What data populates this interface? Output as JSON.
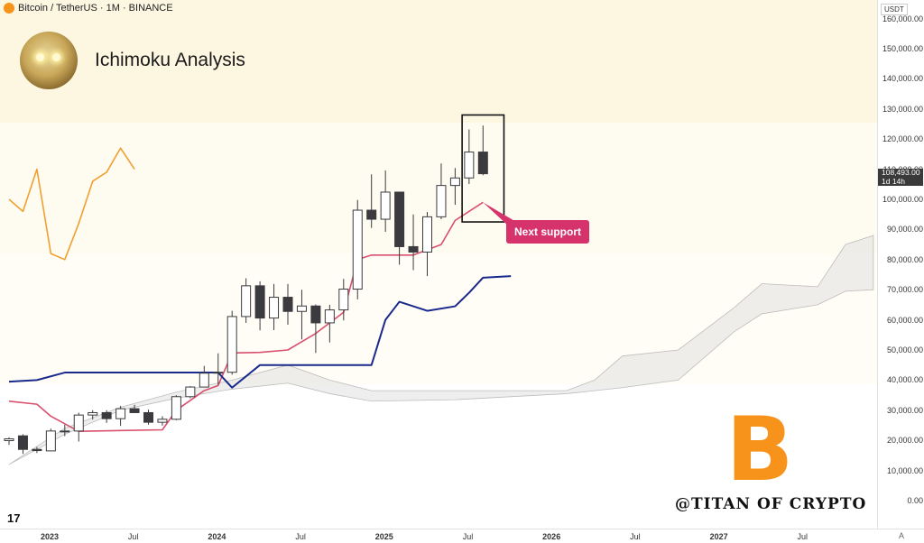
{
  "header": {
    "symbol": "Bitcoin / TetherUS · 1M · BINANCE",
    "currency": "USDT",
    "symbol_icon": "bitcoin-icon"
  },
  "title": "Ichimoku Analysis",
  "avatar_icon": "glowing-eyes-portrait",
  "annotation": "Next support",
  "watermark": "@TITAN OF CRYPTO",
  "bitcoin_logo": "B",
  "tv_logo": "17",
  "bottom_right": "A",
  "price_tag": {
    "price": "108,493.00",
    "countdown": "1d 14h"
  },
  "colors": {
    "conversion_line": "#d94f6e",
    "base_line": "#1a2a8c",
    "lagging_span": "#f0a030",
    "cloud": "#d9d9d9",
    "bull_candle": "#ffffff",
    "bear_candle": "#3b3b3f",
    "annotation": "#d6336c",
    "bitcoin_orange": "#f7931a"
  },
  "chart_data": {
    "type": "candlestick",
    "title": "Bitcoin / TetherUS · 1M · BINANCE",
    "y_axis": {
      "ticks": [
        "160,000.00",
        "150,000.00",
        "140,000.00",
        "130,000.00",
        "120,000.00",
        "110,000.00",
        "100,000.00",
        "90,000.00",
        "80,000.00",
        "70,000.00",
        "60,000.00",
        "50,000.00",
        "40,000.00",
        "30,000.00",
        "20,000.00",
        "10,000.00",
        "0.00"
      ],
      "ylim": [
        0,
        162000
      ]
    },
    "x_axis": {
      "ticks": [
        {
          "label": "2023",
          "t": 0,
          "bold": true
        },
        {
          "label": "Jul",
          "t": 6,
          "bold": false
        },
        {
          "label": "2024",
          "t": 12,
          "bold": true
        },
        {
          "label": "Jul",
          "t": 18,
          "bold": false
        },
        {
          "label": "2025",
          "t": 24,
          "bold": true
        },
        {
          "label": "Jul",
          "t": 30,
          "bold": false
        },
        {
          "label": "2026",
          "t": 36,
          "bold": true
        },
        {
          "label": "Jul",
          "t": 42,
          "bold": false
        },
        {
          "label": "2027",
          "t": 48,
          "bold": true
        },
        {
          "label": "Jul",
          "t": 54,
          "bold": false
        }
      ]
    },
    "candles": [
      {
        "o": 19900,
        "h": 21000,
        "l": 18500,
        "c": 20500
      },
      {
        "o": 21500,
        "h": 22000,
        "l": 15500,
        "c": 17000
      },
      {
        "o": 17000,
        "h": 17800,
        "l": 15800,
        "c": 16600
      },
      {
        "o": 16500,
        "h": 23900,
        "l": 16400,
        "c": 23100
      },
      {
        "o": 23100,
        "h": 25200,
        "l": 21400,
        "c": 23100
      },
      {
        "o": 23100,
        "h": 29200,
        "l": 19600,
        "c": 28400
      },
      {
        "o": 28400,
        "h": 30000,
        "l": 26900,
        "c": 29200
      },
      {
        "o": 29200,
        "h": 30000,
        "l": 25800,
        "c": 27200
      },
      {
        "o": 27200,
        "h": 31400,
        "l": 24800,
        "c": 30500
      },
      {
        "o": 30500,
        "h": 31800,
        "l": 29500,
        "c": 29200
      },
      {
        "o": 29200,
        "h": 30200,
        "l": 25200,
        "c": 26000
      },
      {
        "o": 26000,
        "h": 28000,
        "l": 24900,
        "c": 27000
      },
      {
        "o": 27000,
        "h": 35000,
        "l": 26700,
        "c": 34500
      },
      {
        "o": 34500,
        "h": 38000,
        "l": 34000,
        "c": 37700
      },
      {
        "o": 37700,
        "h": 44700,
        "l": 37600,
        "c": 42300
      },
      {
        "o": 42300,
        "h": 48900,
        "l": 38500,
        "c": 42600
      },
      {
        "o": 42600,
        "h": 63000,
        "l": 41800,
        "c": 61100
      },
      {
        "o": 61100,
        "h": 73800,
        "l": 59000,
        "c": 71300
      },
      {
        "o": 71300,
        "h": 72800,
        "l": 56500,
        "c": 60600
      },
      {
        "o": 60600,
        "h": 71900,
        "l": 56600,
        "c": 67500
      },
      {
        "o": 67500,
        "h": 71900,
        "l": 58400,
        "c": 62800
      },
      {
        "o": 62800,
        "h": 70000,
        "l": 53500,
        "c": 64600
      },
      {
        "o": 64600,
        "h": 65100,
        "l": 49000,
        "c": 59000
      },
      {
        "o": 59000,
        "h": 65000,
        "l": 52500,
        "c": 63300
      },
      {
        "o": 63300,
        "h": 73600,
        "l": 59800,
        "c": 70200
      },
      {
        "o": 70200,
        "h": 99800,
        "l": 66800,
        "c": 96400
      },
      {
        "o": 96400,
        "h": 108300,
        "l": 90500,
        "c": 93400
      },
      {
        "o": 93400,
        "h": 109600,
        "l": 89200,
        "c": 102400
      },
      {
        "o": 102400,
        "h": 102500,
        "l": 78300,
        "c": 84300
      },
      {
        "o": 84300,
        "h": 95000,
        "l": 76500,
        "c": 82500
      },
      {
        "o": 82500,
        "h": 95800,
        "l": 74500,
        "c": 94200
      },
      {
        "o": 94200,
        "h": 111900,
        "l": 93400,
        "c": 104600
      },
      {
        "o": 104600,
        "h": 110400,
        "l": 98200,
        "c": 107100
      },
      {
        "o": 107100,
        "h": 123200,
        "l": 105100,
        "c": 115700
      },
      {
        "o": 115700,
        "h": 124500,
        "l": 108000,
        "c": 108500
      }
    ],
    "series": [
      {
        "name": "Conversion Line",
        "values": [
          [
            0,
            33000
          ],
          [
            2,
            32000
          ],
          [
            3,
            28000
          ],
          [
            5,
            23000
          ],
          [
            11,
            23500
          ],
          [
            12,
            30000
          ],
          [
            14,
            36500
          ],
          [
            15,
            38200
          ],
          [
            16,
            49000
          ],
          [
            18,
            49200
          ],
          [
            20,
            50000
          ],
          [
            22,
            55500
          ],
          [
            24,
            62500
          ],
          [
            25,
            80000
          ],
          [
            26,
            81500
          ],
          [
            29,
            81500
          ],
          [
            31,
            85000
          ],
          [
            32,
            93000
          ],
          [
            34,
            99000
          ]
        ]
      },
      {
        "name": "Base Line",
        "values": [
          [
            0,
            39500
          ],
          [
            2,
            40000
          ],
          [
            4,
            42500
          ],
          [
            15,
            42500
          ],
          [
            16,
            37500
          ],
          [
            18,
            45000
          ],
          [
            26,
            45000
          ],
          [
            27,
            60000
          ],
          [
            28,
            66000
          ],
          [
            30,
            63000
          ],
          [
            32,
            64500
          ],
          [
            33,
            69000
          ],
          [
            34,
            74000
          ],
          [
            36,
            74500
          ]
        ]
      },
      {
        "name": "Lagging Span",
        "values": [
          [
            0,
            100000
          ],
          [
            1,
            96000
          ],
          [
            2,
            110000
          ],
          [
            3,
            82000
          ],
          [
            4,
            80000
          ],
          [
            5,
            92000
          ],
          [
            6,
            106000
          ],
          [
            7,
            109000
          ],
          [
            8,
            117000
          ],
          [
            9,
            110000
          ]
        ]
      }
    ],
    "cloud": {
      "upper": [
        [
          0,
          12000
        ],
        [
          4,
          24000
        ],
        [
          8,
          31000
        ],
        [
          12,
          36000
        ],
        [
          16,
          40000
        ],
        [
          20,
          45000
        ],
        [
          23,
          40000
        ],
        [
          26,
          36500
        ],
        [
          32,
          36500
        ],
        [
          40,
          36500
        ],
        [
          42,
          40000
        ],
        [
          44,
          48000
        ],
        [
          48,
          50000
        ],
        [
          52,
          64000
        ],
        [
          54,
          72000
        ],
        [
          58,
          71000
        ],
        [
          60,
          85000
        ],
        [
          62,
          88000
        ]
      ],
      "lower": [
        [
          0,
          12000
        ],
        [
          4,
          22000
        ],
        [
          8,
          30000
        ],
        [
          12,
          34000
        ],
        [
          16,
          37000
        ],
        [
          20,
          39000
        ],
        [
          23,
          35500
        ],
        [
          26,
          33000
        ],
        [
          32,
          33500
        ],
        [
          40,
          35500
        ],
        [
          42,
          36500
        ],
        [
          44,
          37500
        ],
        [
          48,
          40000
        ],
        [
          52,
          56000
        ],
        [
          54,
          62000
        ],
        [
          58,
          65000
        ],
        [
          60,
          69500
        ],
        [
          62,
          70000
        ]
      ]
    },
    "highlight_box": {
      "t_start": 32.5,
      "t_end": 35.5,
      "top": 128000,
      "bottom": 92500
    },
    "annotations": [
      {
        "text": "Next support",
        "point": {
          "t": 34,
          "value": 99000
        }
      }
    ]
  }
}
